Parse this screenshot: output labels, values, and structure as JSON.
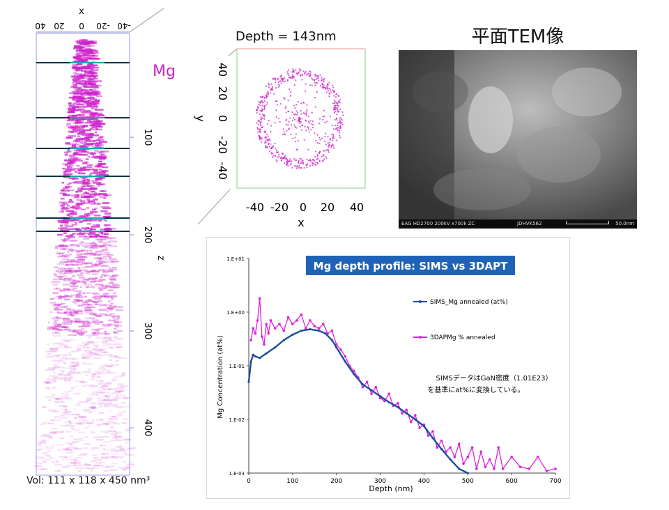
{
  "column": {
    "x_axis_label": "x",
    "x_ticks": [
      "40",
      "20",
      "0",
      "-20",
      "-40"
    ],
    "z_axis_label": "z",
    "z_ticks": [
      "100",
      "200",
      "300",
      "400"
    ],
    "species": "Mg",
    "volume_label": "Vol: 111 x 118 x 450 nm³",
    "accent": "#cc22cc"
  },
  "slice": {
    "title": "Depth = 143nm",
    "x_label": "x",
    "y_label": "y",
    "x_ticks": [
      "-40",
      "-20",
      "0",
      "20",
      "40"
    ],
    "y_ticks": [
      "40",
      "20",
      "0",
      "-20",
      "-40"
    ]
  },
  "tem": {
    "title": "平面TEM像",
    "footer_left": "EAG HD2700  200kV  x700k  ZC",
    "footer_mid": "JDHVK562",
    "footer_scale": "50.0nm"
  },
  "chart_data": {
    "type": "line",
    "title": "Mg depth profile: SIMS vs 3DAPT",
    "xlabel": "Depth (nm)",
    "ylabel": "Mg Concentration (at%)",
    "y_scale": "log",
    "xlim": [
      0,
      700
    ],
    "ylim": [
      0.001,
      10
    ],
    "x_ticks": [
      "0",
      "100",
      "200",
      "300",
      "400",
      "500",
      "600",
      "700"
    ],
    "y_ticks": [
      "1.E-03",
      "1.E-02",
      "1.E-01",
      "1.E+00",
      "1.E+01"
    ],
    "legend_position": "right",
    "annotation_line1": "SIMSデータはGaN密度（1.01E23）",
    "annotation_line2": "を基準にat%に変換している。",
    "series": [
      {
        "name": "SIMS_Mg annealed (at%)",
        "color": "#1f4e9c",
        "x": [
          0,
          5,
          10,
          15,
          25,
          40,
          60,
          80,
          100,
          120,
          140,
          160,
          175,
          190,
          200,
          220,
          240,
          260,
          280,
          300,
          320,
          340,
          360,
          380,
          400,
          420,
          440,
          460,
          480,
          500
        ],
        "y": [
          0.05,
          0.12,
          0.16,
          0.15,
          0.14,
          0.17,
          0.22,
          0.3,
          0.38,
          0.45,
          0.48,
          0.45,
          0.4,
          0.3,
          0.22,
          0.12,
          0.07,
          0.045,
          0.035,
          0.027,
          0.021,
          0.017,
          0.013,
          0.01,
          0.0075,
          0.0045,
          0.0028,
          0.0018,
          0.0012,
          0.001
        ]
      },
      {
        "name": "3DAPMg % annealed",
        "color": "#dd22dd",
        "x": [
          5,
          10,
          15,
          20,
          25,
          30,
          35,
          40,
          45,
          50,
          60,
          70,
          80,
          90,
          100,
          110,
          120,
          130,
          140,
          150,
          160,
          170,
          180,
          190,
          200,
          210,
          220,
          230,
          240,
          250,
          260,
          270,
          280,
          290,
          300,
          310,
          320,
          330,
          340,
          350,
          360,
          370,
          380,
          390,
          400,
          410,
          420,
          430,
          440,
          450,
          460,
          470,
          480,
          490,
          500,
          510,
          520,
          530,
          540,
          550,
          560,
          570,
          580,
          600,
          620,
          640,
          660,
          680,
          700
        ],
        "y": [
          0.3,
          0.5,
          0.4,
          0.7,
          1.8,
          0.35,
          0.25,
          0.6,
          0.4,
          0.7,
          0.5,
          0.6,
          0.45,
          0.8,
          0.6,
          0.7,
          0.9,
          0.5,
          0.7,
          0.55,
          0.5,
          0.6,
          0.4,
          0.45,
          0.25,
          0.2,
          0.15,
          0.1,
          0.08,
          0.06,
          0.04,
          0.05,
          0.03,
          0.04,
          0.025,
          0.022,
          0.03,
          0.018,
          0.02,
          0.013,
          0.015,
          0.009,
          0.012,
          0.007,
          0.008,
          0.005,
          0.006,
          0.003,
          0.004,
          0.0025,
          0.003,
          0.002,
          0.0035,
          0.0015,
          0.002,
          0.003,
          0.0012,
          0.0025,
          0.0013,
          0.0018,
          0.0012,
          0.003,
          0.0012,
          0.002,
          0.0013,
          0.0012,
          0.002,
          0.0011,
          0.0012
        ]
      }
    ]
  }
}
